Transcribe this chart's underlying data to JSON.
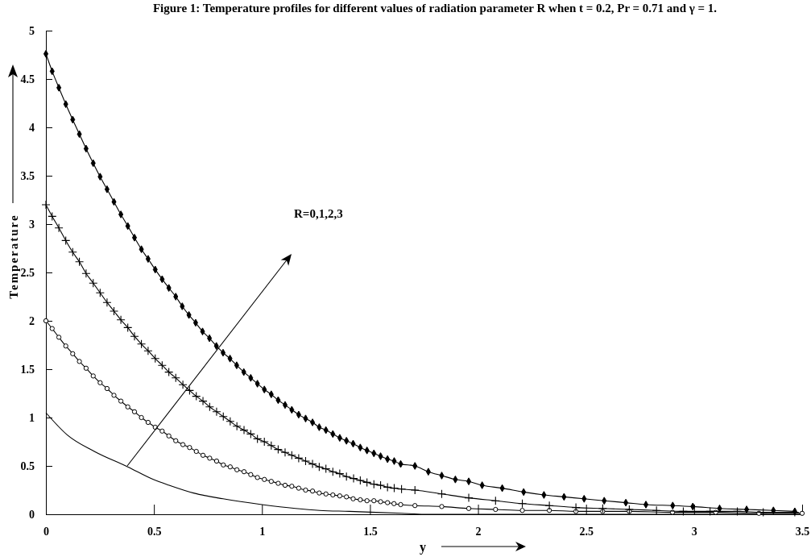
{
  "chart_data": {
    "type": "line",
    "title": "Figure 1: Temperature profiles for different values of radiation parameter R when t = 0.2, Pr = 0.71 and γ = 1.",
    "xlabel": "y",
    "ylabel": "Temperature",
    "annotations": [
      "R=0,1,2,3"
    ],
    "xlim": [
      0,
      3.5
    ],
    "ylim": [
      0,
      5
    ],
    "xticks": [
      0,
      0.5,
      1,
      1.5,
      2,
      2.5,
      3,
      3.5
    ],
    "yticks": [
      0,
      0.5,
      1,
      1.5,
      2,
      2.5,
      3,
      3.5,
      4,
      4.5,
      5
    ],
    "grid": false,
    "line_style": "solid",
    "series": [
      {
        "color": "#000000",
        "marker": "none",
        "x": [
          0,
          0.099,
          0.224,
          0.379,
          0.497,
          0.571,
          0.683,
          0.82,
          1.0,
          1.155,
          1.267,
          1.404,
          1.528,
          1.646,
          1.75,
          2.5,
          3.5
        ],
        "values": [
          1.05,
          0.82,
          0.65,
          0.49,
          0.36,
          0.3,
          0.22,
          0.16,
          0.1,
          0.06,
          0.04,
          0.03,
          0.02,
          0.01,
          0,
          0,
          0
        ]
      },
      {
        "color": "#000000",
        "marker": "circle",
        "x": [
          0,
          0.029,
          0.06,
          0.092,
          0.124,
          0.155,
          0.186,
          0.219,
          0.251,
          0.283,
          0.315,
          0.347,
          0.379,
          0.41,
          0.442,
          0.473,
          0.506,
          0.538,
          0.569,
          0.601,
          0.634,
          0.665,
          0.696,
          0.727,
          0.758,
          0.79,
          0.821,
          0.853,
          0.884,
          0.917,
          0.948,
          0.979,
          1.011,
          1.043,
          1.075,
          1.107,
          1.138,
          1.17,
          1.202,
          1.234,
          1.265,
          1.296,
          1.328,
          1.36,
          1.391,
          1.422,
          1.455,
          1.486,
          1.518,
          1.549,
          1.581,
          1.611,
          1.642,
          1.708,
          1.832,
          1.957,
          2.081,
          2.205,
          2.33,
          2.453,
          2.577,
          2.7,
          2.9,
          3.1,
          3.3,
          3.5
        ],
        "values": [
          2.0,
          1.92,
          1.83,
          1.74,
          1.66,
          1.58,
          1.51,
          1.43,
          1.36,
          1.3,
          1.23,
          1.17,
          1.11,
          1.06,
          1.0,
          0.95,
          0.9,
          0.86,
          0.81,
          0.76,
          0.72,
          0.69,
          0.65,
          0.61,
          0.58,
          0.55,
          0.51,
          0.49,
          0.46,
          0.44,
          0.41,
          0.38,
          0.36,
          0.34,
          0.32,
          0.3,
          0.29,
          0.27,
          0.25,
          0.24,
          0.22,
          0.21,
          0.2,
          0.19,
          0.18,
          0.16,
          0.15,
          0.14,
          0.14,
          0.13,
          0.12,
          0.11,
          0.1,
          0.09,
          0.08,
          0.06,
          0.05,
          0.04,
          0.04,
          0.03,
          0.03,
          0.03,
          0.02,
          0.02,
          0.01,
          0.01
        ]
      },
      {
        "color": "#000000",
        "marker": "cross",
        "x": [
          0,
          0.029,
          0.06,
          0.092,
          0.124,
          0.155,
          0.186,
          0.219,
          0.251,
          0.283,
          0.315,
          0.347,
          0.379,
          0.41,
          0.442,
          0.473,
          0.506,
          0.538,
          0.569,
          0.601,
          0.634,
          0.665,
          0.696,
          0.727,
          0.758,
          0.79,
          0.821,
          0.853,
          0.884,
          0.917,
          0.948,
          0.979,
          1.011,
          1.043,
          1.075,
          1.107,
          1.138,
          1.17,
          1.202,
          1.234,
          1.265,
          1.296,
          1.328,
          1.36,
          1.391,
          1.424,
          1.455,
          1.486,
          1.518,
          1.549,
          1.581,
          1.612,
          1.646,
          1.708,
          1.832,
          1.957,
          2.081,
          2.205,
          2.33,
          2.453,
          2.577,
          2.7,
          2.826,
          2.95,
          3.074,
          3.2,
          3.32,
          3.466
        ],
        "values": [
          3.2,
          3.08,
          2.96,
          2.83,
          2.71,
          2.61,
          2.49,
          2.39,
          2.29,
          2.19,
          2.1,
          2.01,
          1.93,
          1.84,
          1.76,
          1.69,
          1.61,
          1.54,
          1.47,
          1.41,
          1.34,
          1.28,
          1.22,
          1.17,
          1.11,
          1.06,
          1.01,
          0.96,
          0.91,
          0.87,
          0.83,
          0.78,
          0.75,
          0.71,
          0.67,
          0.64,
          0.61,
          0.58,
          0.55,
          0.52,
          0.49,
          0.47,
          0.44,
          0.42,
          0.39,
          0.37,
          0.35,
          0.33,
          0.31,
          0.3,
          0.28,
          0.27,
          0.26,
          0.25,
          0.21,
          0.17,
          0.14,
          0.11,
          0.09,
          0.07,
          0.06,
          0.05,
          0.04,
          0.03,
          0.03,
          0.03,
          0.02,
          0.02
        ]
      },
      {
        "color": "#000000",
        "marker": "diamond",
        "x": [
          0,
          0.029,
          0.06,
          0.092,
          0.124,
          0.155,
          0.186,
          0.219,
          0.251,
          0.283,
          0.315,
          0.347,
          0.379,
          0.41,
          0.442,
          0.473,
          0.506,
          0.538,
          0.569,
          0.601,
          0.631,
          0.662,
          0.693,
          0.725,
          0.757,
          0.789,
          0.82,
          0.852,
          0.883,
          0.916,
          0.948,
          0.979,
          1.011,
          1.043,
          1.075,
          1.107,
          1.138,
          1.17,
          1.202,
          1.234,
          1.265,
          1.296,
          1.328,
          1.36,
          1.391,
          1.422,
          1.455,
          1.486,
          1.518,
          1.549,
          1.581,
          1.612,
          1.642,
          1.708,
          1.77,
          1.832,
          1.895,
          1.957,
          2.019,
          2.112,
          2.211,
          2.305,
          2.398,
          2.491,
          2.584,
          2.684,
          2.777,
          2.901,
          2.994,
          3.118,
          3.243,
          3.367,
          3.466
        ],
        "values": [
          4.76,
          4.58,
          4.41,
          4.24,
          4.08,
          3.93,
          3.78,
          3.63,
          3.49,
          3.36,
          3.23,
          3.1,
          2.98,
          2.86,
          2.74,
          2.64,
          2.53,
          2.43,
          2.34,
          2.25,
          2.15,
          2.06,
          1.98,
          1.89,
          1.82,
          1.74,
          1.67,
          1.61,
          1.54,
          1.47,
          1.41,
          1.35,
          1.29,
          1.24,
          1.18,
          1.13,
          1.08,
          1.03,
          0.99,
          0.95,
          0.9,
          0.87,
          0.83,
          0.79,
          0.76,
          0.73,
          0.69,
          0.66,
          0.63,
          0.6,
          0.57,
          0.55,
          0.52,
          0.5,
          0.44,
          0.4,
          0.36,
          0.34,
          0.3,
          0.27,
          0.23,
          0.2,
          0.18,
          0.16,
          0.14,
          0.12,
          0.1,
          0.09,
          0.08,
          0.06,
          0.05,
          0.04,
          0.03
        ]
      }
    ]
  }
}
